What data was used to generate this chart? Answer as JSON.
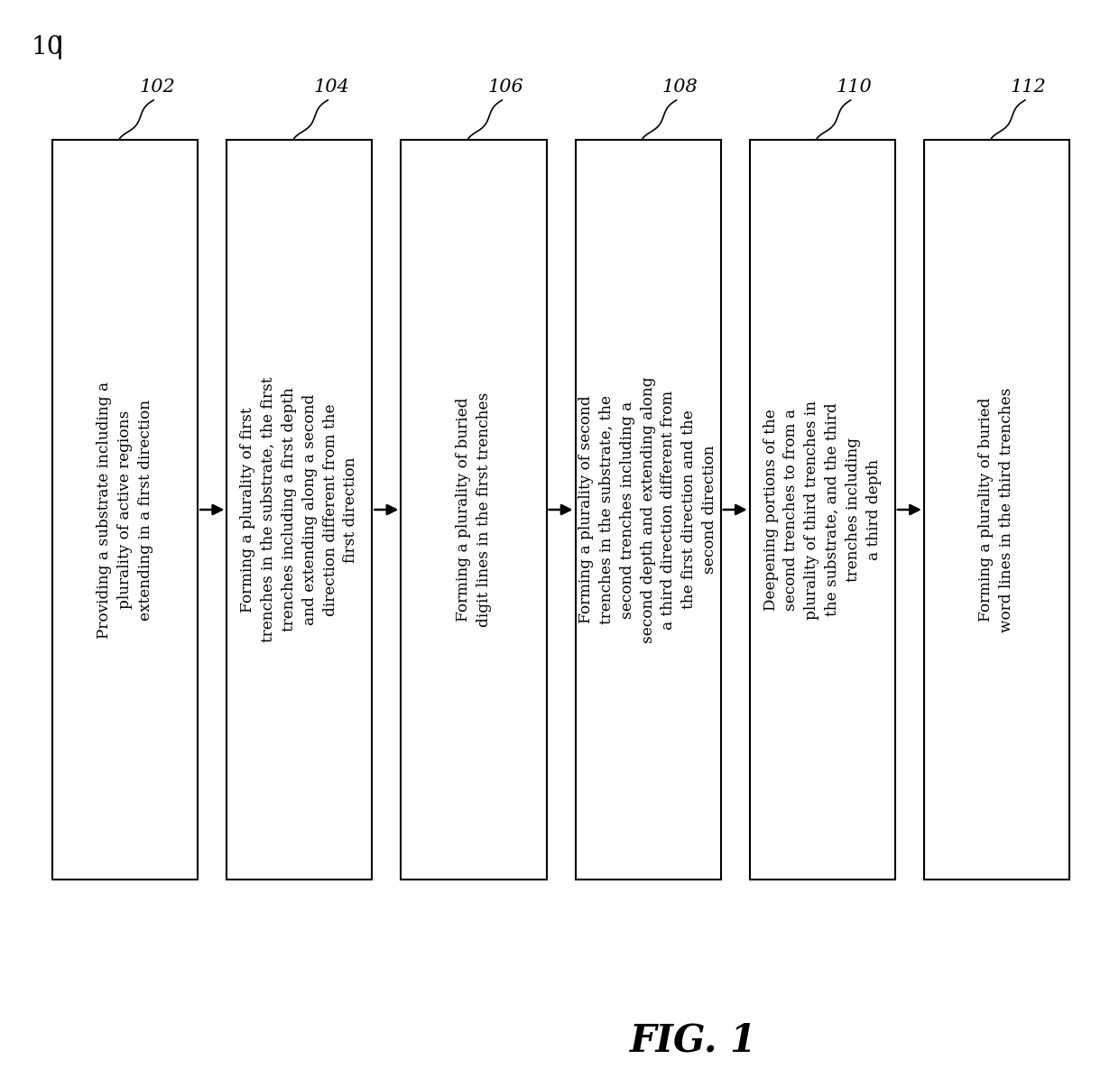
{
  "fig_label": "FIG. 1",
  "diagram_label": "10",
  "background_color": "#ffffff",
  "box_fill": "#ffffff",
  "box_edge": "#000000",
  "arrow_color": "#000000",
  "boxes": [
    {
      "ref": "102",
      "text": "Providing a substrate including a\nplurality of active regions\nextending in a first direction"
    },
    {
      "ref": "104",
      "text": "Forming a plurality of first\ntrenches in the substrate, the first\ntrenches including a first depth\nand extending along a second\ndirection different from the\nfirst direction"
    },
    {
      "ref": "106",
      "text": "Forming a plurality of buried\ndigit lines in the first trenches"
    },
    {
      "ref": "108",
      "text": "Forming a plurality of second\ntrenches in the substrate, the\nsecond trenches including a\nsecond depth and extending along\na third direction different from\nthe first direction and the\nsecond direction"
    },
    {
      "ref": "110",
      "text": "Deepening portions of the\nsecond trenches to from a\nplurality of third trenches in\nthe substrate, and the third\ntrenches including\na third depth"
    },
    {
      "ref": "112",
      "text": "Forming a plurality of buried\nword lines in the third trenches"
    }
  ]
}
